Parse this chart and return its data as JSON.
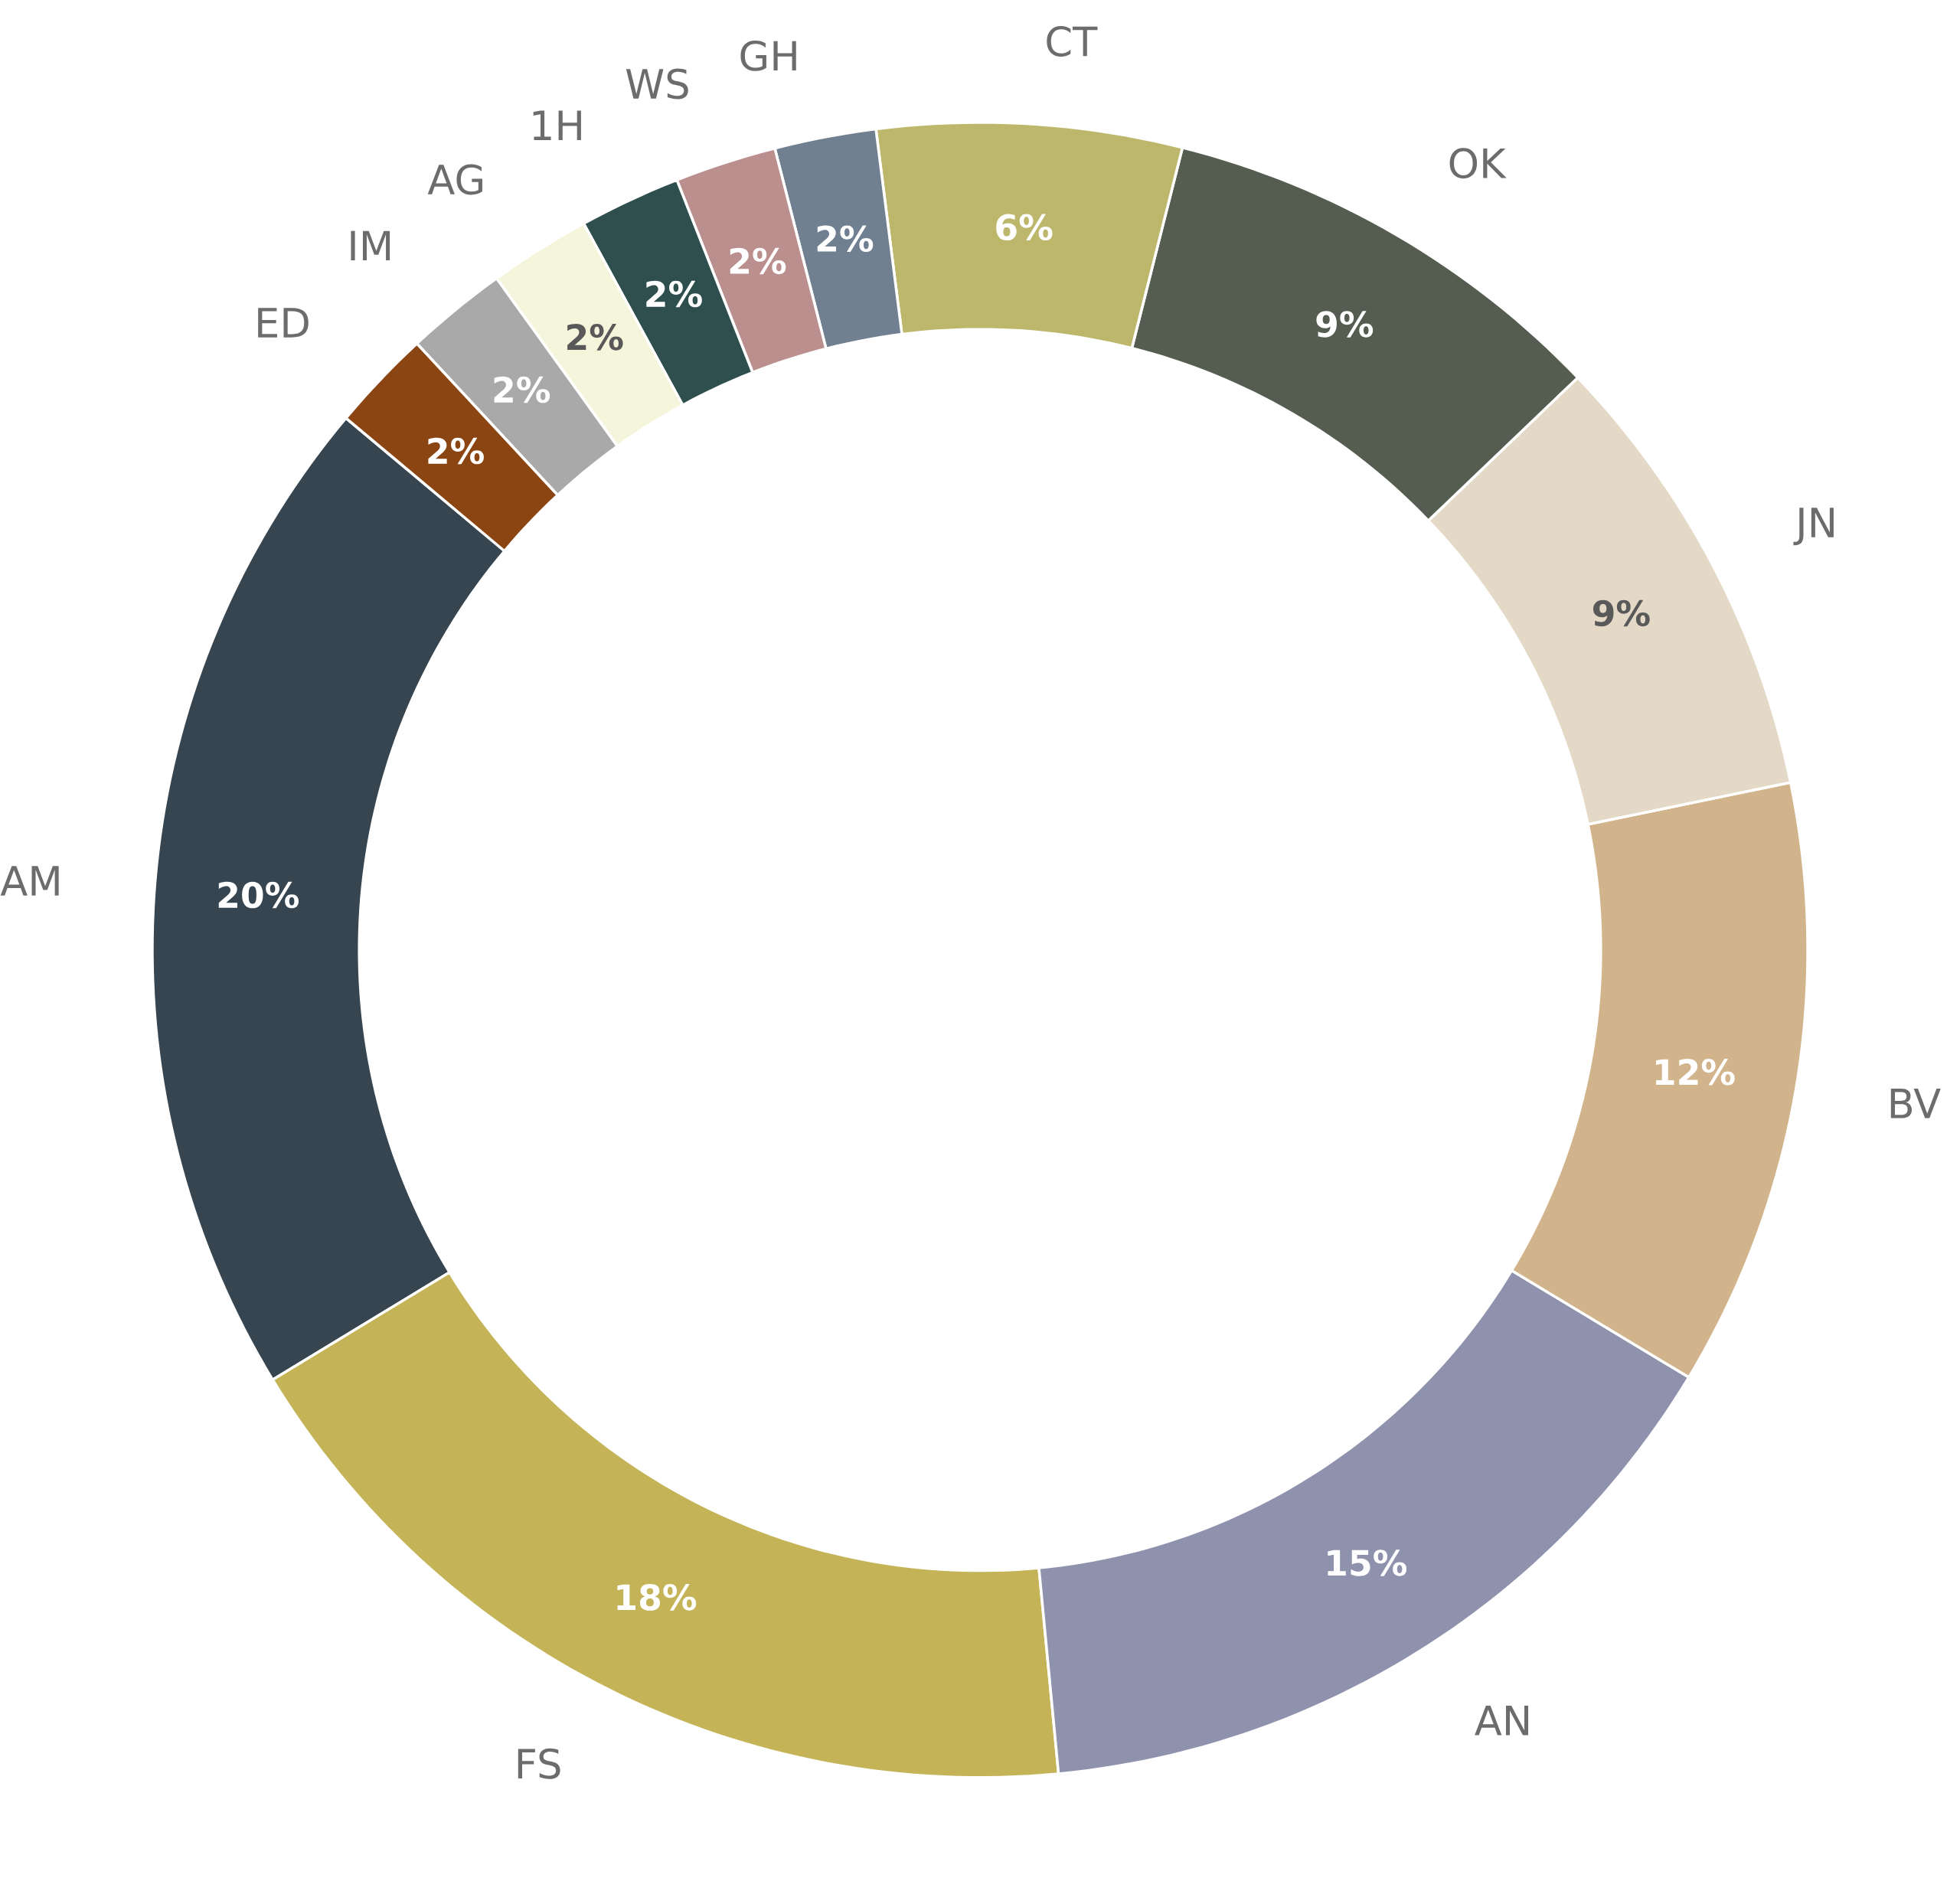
{
  "chart_data": {
    "type": "donut",
    "categories": [
      "AM",
      "FS",
      "AN",
      "BV",
      "JN",
      "OK",
      "CT",
      "GH",
      "WS",
      "1H",
      "AG",
      "IM",
      "ED"
    ],
    "values": [
      20,
      18,
      15,
      12,
      9,
      9,
      6,
      2,
      2,
      2,
      2,
      2,
      2
    ],
    "colors": [
      "#36454f",
      "#c5b358",
      "#8e92ad",
      "#d2b48c",
      "#e3d9c6",
      "#555d50",
      "#bdb76b",
      "#708090",
      "#bc8f8f",
      "#2f4f4f",
      "#f5f5dc",
      "#a9a9a9",
      "#8b4513"
    ],
    "value_labels": [
      "20%",
      "18%",
      "15%",
      "12%",
      "9%",
      "9%",
      "6%",
      "2%",
      "2%",
      "2%",
      "2%",
      "2%",
      "2%"
    ]
  }
}
